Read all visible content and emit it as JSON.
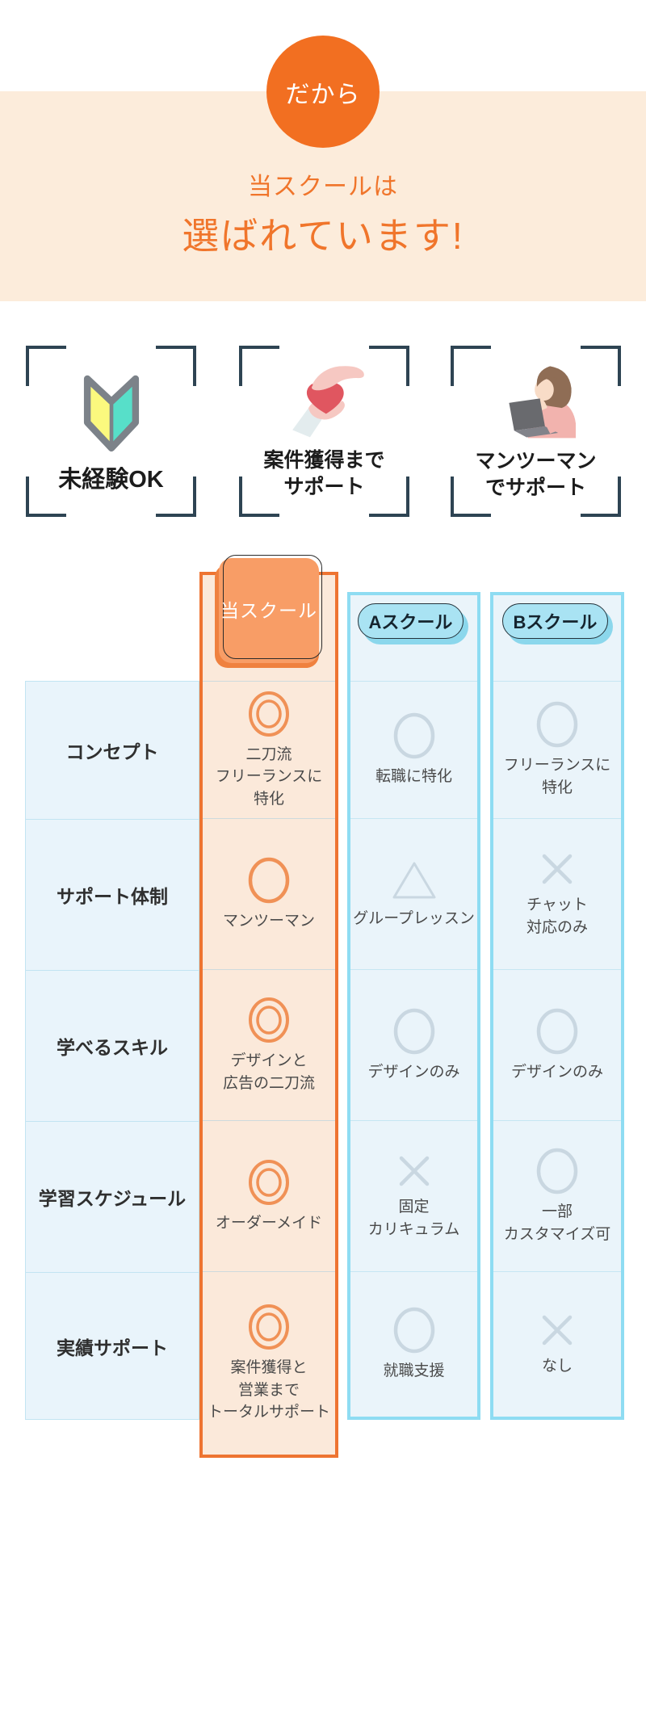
{
  "hero": {
    "bubble": "だから",
    "line1": "当スクールは",
    "line2": "選ばれています!"
  },
  "features": [
    {
      "icon": "beginner-mark-icon",
      "label": "未経験OK"
    },
    {
      "icon": "hand-heart-icon",
      "label": "案件獲得まで\nサポート"
    },
    {
      "icon": "woman-laptop-icon",
      "label": "マンツーマン\nでサポート"
    }
  ],
  "comparison_table": {
    "header": {
      "ours": "当スクール",
      "school_a": "Aスクール",
      "school_b": "Bスクール"
    },
    "rows": [
      {
        "label": "コンセプト",
        "cells": [
          {
            "mark": "double-circle",
            "text": "二刀流\nフリーランスに\n特化"
          },
          {
            "mark": "circle",
            "text": "転職に特化"
          },
          {
            "mark": "circle",
            "text": "フリーランスに\n特化"
          }
        ]
      },
      {
        "label": "サポート体制",
        "cells": [
          {
            "mark": "circle",
            "text": "マンツーマン"
          },
          {
            "mark": "triangle",
            "text": "グループレッスン"
          },
          {
            "mark": "cross",
            "text": "チャット\n対応のみ"
          }
        ]
      },
      {
        "label": "学べるスキル",
        "cells": [
          {
            "mark": "double-circle",
            "text": "デザインと\n広告の二刀流"
          },
          {
            "mark": "circle",
            "text": "デザインのみ"
          },
          {
            "mark": "circle",
            "text": "デザインのみ"
          }
        ]
      },
      {
        "label": "学習スケジュール",
        "cells": [
          {
            "mark": "double-circle",
            "text": "オーダーメイド"
          },
          {
            "mark": "cross",
            "text": "固定\nカリキュラム"
          },
          {
            "mark": "circle",
            "text": "一部\nカスタマイズ可"
          }
        ]
      },
      {
        "label": "実績サポート",
        "cells": [
          {
            "mark": "double-circle",
            "text": "案件獲得と\n営業まで\nトータルサポート"
          },
          {
            "mark": "circle",
            "text": "就職支援"
          },
          {
            "mark": "cross",
            "text": "なし"
          }
        ]
      }
    ]
  },
  "colors": {
    "accent_orange": "#f26f21",
    "heading_orange": "#f0752b",
    "hero_band": "#fcecdb",
    "ours_border": "#ee7431",
    "ours_bg": "#fbe9da",
    "ours_card": "#f89d66",
    "blue_border": "#8edcf2",
    "blue_bg": "#eaf4fa",
    "pill_fill": "#a9e3f3",
    "label_bg": "#e9f4fb",
    "mark_gray": "#c9d7e1",
    "mark_orange": "#f09156",
    "bracket": "#2e4453"
  }
}
